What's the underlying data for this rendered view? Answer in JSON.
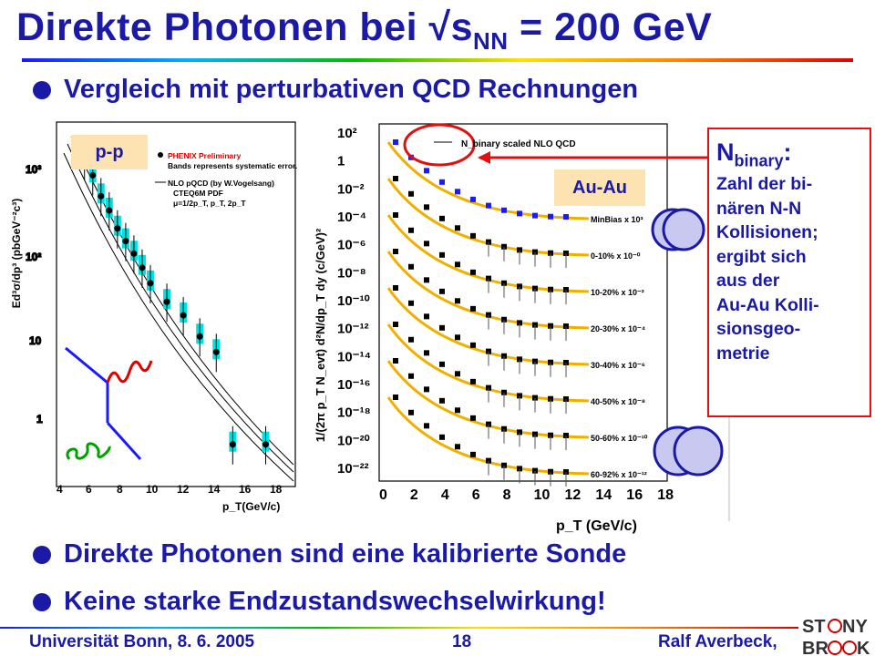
{
  "slide": {
    "title_main": "Direkte Photonen bei √s",
    "title_sub": "NN",
    "title_tail": " = 200 GeV",
    "bullets": [
      "Vergleich mit perturbativen QCD Rechnungen",
      "Direkte Photonen sind eine kalibrierte Sonde",
      "Keine starke Endzustandswechselwirkung!"
    ],
    "footer": {
      "left": "Universität Bonn,  8. 6. 2005",
      "center": "18",
      "right": "Ralf Averbeck,"
    },
    "logo": {
      "line1": "ST",
      "line1b": "NY",
      "line2": "BR",
      "line2b": "K"
    }
  },
  "callout": {
    "head_main": "N",
    "head_sub": "binary",
    "head_tail": ":",
    "lines": [
      "Zahl der bi-",
      "nären N-N",
      "Kollisionen;",
      "ergibt sich",
      "aus der",
      "Au-Au Kolli-",
      "sionsgeo-",
      "metrie"
    ]
  },
  "pp_panel": {
    "tag": "p-p",
    "ylabel": "Ed³σ/dp³ (pbGeV⁻²c³)",
    "xlabel": "p_T(GeV/c)",
    "legend": [
      "PHENIX Preliminary",
      "Bands represents systematic error.",
      "NLO pQCD (by W.Vogelsang)",
      "CTEQ6M PDF",
      "μ=1/2p_T, p_T, 2p_T"
    ],
    "yticks": [
      "1",
      "10",
      "10²",
      "10³"
    ],
    "xticks": [
      "4",
      "6",
      "8",
      "10",
      "12",
      "14",
      "16",
      "18"
    ]
  },
  "auau_panel": {
    "tag": "Au-Au",
    "legend": "N_binary scaled NLO QCD",
    "ylabel": "1/(2π p_T N_evt) d²N/dp_T dy (c/GeV)²",
    "xlabel": "p_T (GeV/c)",
    "yticks": [
      "10²",
      "1",
      "10⁻²",
      "10⁻⁴",
      "10⁻⁶",
      "10⁻⁸",
      "10⁻¹⁰",
      "10⁻¹²",
      "10⁻¹⁴",
      "10⁻¹⁶",
      "10⁻¹⁸",
      "10⁻²⁰",
      "10⁻²²"
    ],
    "xticks": [
      "0",
      "2",
      "4",
      "6",
      "8",
      "10",
      "12",
      "14",
      "16",
      "18"
    ],
    "series_labels": [
      "MinBias x 10³",
      "0-10%  x 10⁻⁰",
      "10-20%  x 10⁻²",
      "20-30%  x 10⁻⁴",
      "30-40%  x 10⁻⁶",
      "40-50%  x 10⁻⁸",
      "50-60%  x 10⁻¹⁰",
      "60-92%  x 10⁻¹²"
    ]
  },
  "chart_data": [
    {
      "type": "scatter",
      "title": "",
      "xlabel": "p_T(GeV/c)",
      "ylabel": "Ed³σ/dp³ (pbGeV⁻²c³)",
      "log_y": true,
      "xlim": [
        3.5,
        18
      ],
      "ylim": [
        0.3,
        4000
      ],
      "series": [
        {
          "name": "PHENIX Preliminary",
          "x": [
            5.2,
            5.7,
            6.2,
            6.7,
            7.2,
            7.7,
            8.2,
            8.7,
            9.2,
            10.2,
            11.2,
            12.2,
            13.2,
            14.2,
            16.2
          ],
          "y": [
            1500,
            1000,
            580,
            400,
            250,
            180,
            130,
            90,
            60,
            37,
            26,
            15,
            10,
            0.9,
            0.9
          ]
        }
      ]
    },
    {
      "type": "scatter",
      "title": "",
      "xlabel": "p_T (GeV/c)",
      "ylabel": "1/(2π p_T N_evt) d²N/dp_T dy (c/GeV)²",
      "log_y": true,
      "xlim": [
        0,
        18
      ],
      "ylim": [
        1e-22,
        100
      ],
      "series": [
        {
          "name": "MinBias x 10³",
          "x": [
            1.5,
            2,
            3,
            4,
            5,
            6,
            7,
            8,
            9,
            10,
            11,
            12,
            13
          ],
          "y": [
            1,
            0.2,
            0.02,
            0.004,
            0.001,
            0.0004,
            0.00015,
            7e-05,
            3e-05,
            1.5e-05,
            8e-06,
            5e-06,
            3e-06
          ]
        },
        {
          "name": "0-10%  x 10⁻⁰",
          "x": [
            1.5,
            2,
            3,
            4,
            5,
            6,
            7,
            8,
            9,
            10,
            11,
            12
          ],
          "y": [
            0.01,
            0.002,
            0.0002,
            3e-05,
            8e-06,
            3e-06,
            1.2e-06,
            6e-07,
            3e-07,
            1.5e-07,
            8e-08,
            5e-08
          ]
        }
      ]
    }
  ]
}
